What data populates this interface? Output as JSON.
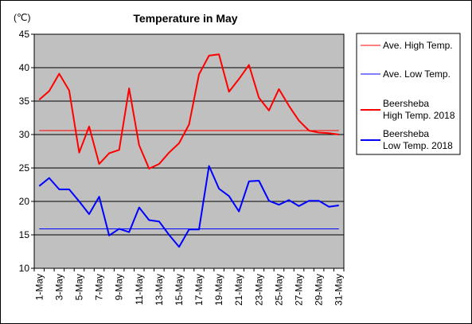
{
  "chart_data": {
    "type": "line",
    "title": "Temperature in May",
    "ylabel": "(℃)",
    "xlabel": "",
    "ylim": [
      10,
      45
    ],
    "yticks": [
      10,
      15,
      20,
      25,
      30,
      35,
      40,
      45
    ],
    "grid": true,
    "legend_position": "right",
    "x_tick_labels": [
      "1-May",
      "3-May",
      "5-May",
      "7-May",
      "9-May",
      "11-May",
      "13-May",
      "15-May",
      "17-May",
      "19-May",
      "21-May",
      "23-May",
      "25-May",
      "27-May",
      "29-May",
      "31-May"
    ],
    "categories": [
      "1-May",
      "2-May",
      "3-May",
      "4-May",
      "5-May",
      "6-May",
      "7-May",
      "8-May",
      "9-May",
      "10-May",
      "11-May",
      "12-May",
      "13-May",
      "14-May",
      "15-May",
      "16-May",
      "17-May",
      "18-May",
      "19-May",
      "20-May",
      "21-May",
      "22-May",
      "23-May",
      "24-May",
      "25-May",
      "26-May",
      "27-May",
      "28-May",
      "29-May",
      "30-May",
      "31-May"
    ],
    "series": [
      {
        "name": "Ave. High Temp.",
        "color": "#ff0000",
        "width": 1,
        "constant": 30.6
      },
      {
        "name": "Ave. Low Temp.",
        "color": "#0000ff",
        "width": 1,
        "constant": 15.9
      },
      {
        "name": "Beersheba\nHigh Temp. 2018",
        "color": "#ff0000",
        "width": 2,
        "values": [
          35.2,
          36.5,
          39.1,
          36.6,
          27.3,
          31.2,
          25.6,
          27.2,
          27.7,
          36.9,
          28.4,
          24.9,
          25.6,
          27.3,
          28.7,
          31.5,
          39.0,
          41.8,
          42.0,
          36.4,
          38.3,
          40.4,
          35.5,
          33.6,
          36.8,
          34.3,
          32.1,
          30.6,
          30.3,
          30.2,
          30.0
        ]
      },
      {
        "name": "Beersheba\nLow Temp. 2018",
        "color": "#0000ff",
        "width": 2,
        "values": [
          22.3,
          23.5,
          21.8,
          21.8,
          20.0,
          18.1,
          20.7,
          14.9,
          15.9,
          15.4,
          19.1,
          17.2,
          17.0,
          15.0,
          13.2,
          15.8,
          15.8,
          25.3,
          21.9,
          20.8,
          18.5,
          23.0,
          23.1,
          20.1,
          19.5,
          20.2,
          19.3,
          20.1,
          20.1,
          19.2,
          19.4
        ]
      }
    ]
  },
  "colors": {
    "plot_background": "#c0c0c0",
    "grid": "#000000"
  }
}
